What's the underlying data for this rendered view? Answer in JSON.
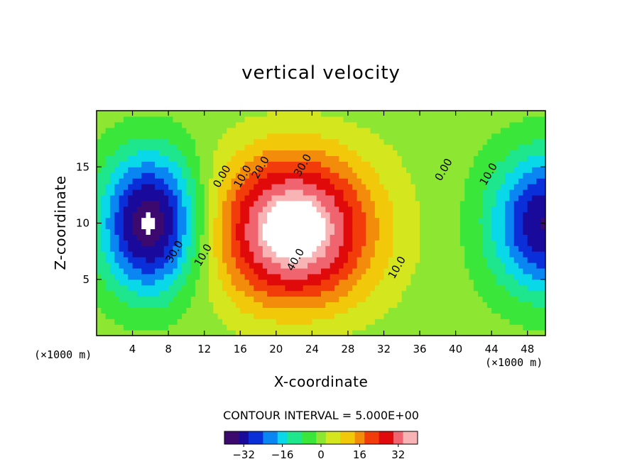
{
  "chart_data": {
    "type": "heatmap",
    "title": "vertical velocity",
    "xlabel": "X-coordinate",
    "ylabel": "Z-coordinate",
    "x_units_left": "(×1000 m)",
    "x_units_right": "(×1000 m)",
    "xlim": [
      0,
      50
    ],
    "ylim": [
      0,
      20
    ],
    "x_ticks": [
      4,
      8,
      12,
      16,
      20,
      24,
      28,
      32,
      36,
      40,
      44,
      48
    ],
    "y_ticks": [
      5,
      10,
      15
    ],
    "contour_interval_text": "CONTOUR INTERVAL = 5.000E+00",
    "contour_labels": [
      {
        "text": "0.00",
        "x": 14.3,
        "z": 14
      },
      {
        "text": "10.0",
        "x": 16.6,
        "z": 14
      },
      {
        "text": "20.0",
        "x": 18.6,
        "z": 14.8
      },
      {
        "text": "30.0",
        "x": 23.3,
        "z": 15
      },
      {
        "text": "40.0",
        "x": 22.5,
        "z": 6.6
      },
      {
        "text": "10.0",
        "x": 33.8,
        "z": 5.9
      },
      {
        "text": "0.00",
        "x": 39.0,
        "z": 14.6
      },
      {
        "text": "10.0",
        "x": 44.0,
        "z": 14.2
      },
      {
        "text": "30.0",
        "x": 9.0,
        "z": 7.3
      },
      {
        "text": "10.0",
        "x": 12.2,
        "z": 7.0
      }
    ],
    "field_extremes": [
      {
        "sign": "min",
        "x": 6,
        "z": 10,
        "value": -40
      },
      {
        "sign": "max",
        "x": 22,
        "z": 9,
        "value": 45
      },
      {
        "sign": "min",
        "x": 50,
        "z": 10,
        "value": -35
      }
    ],
    "colorbar": {
      "range": [
        -40,
        40
      ],
      "ticks": [
        -32,
        -16,
        0,
        16,
        32
      ],
      "tick_labels": [
        "−32",
        "−16",
        "0",
        "16",
        "32"
      ],
      "colors": [
        "#3c0a6e",
        "#1a0a9c",
        "#0a2fd8",
        "#0a86f2",
        "#08d8e8",
        "#1ee68c",
        "#3ae63a",
        "#8ce632",
        "#d4e61e",
        "#f2c80a",
        "#f28c0a",
        "#f23c0a",
        "#e00a0a",
        "#f06470",
        "#f8b4b4"
      ]
    }
  }
}
